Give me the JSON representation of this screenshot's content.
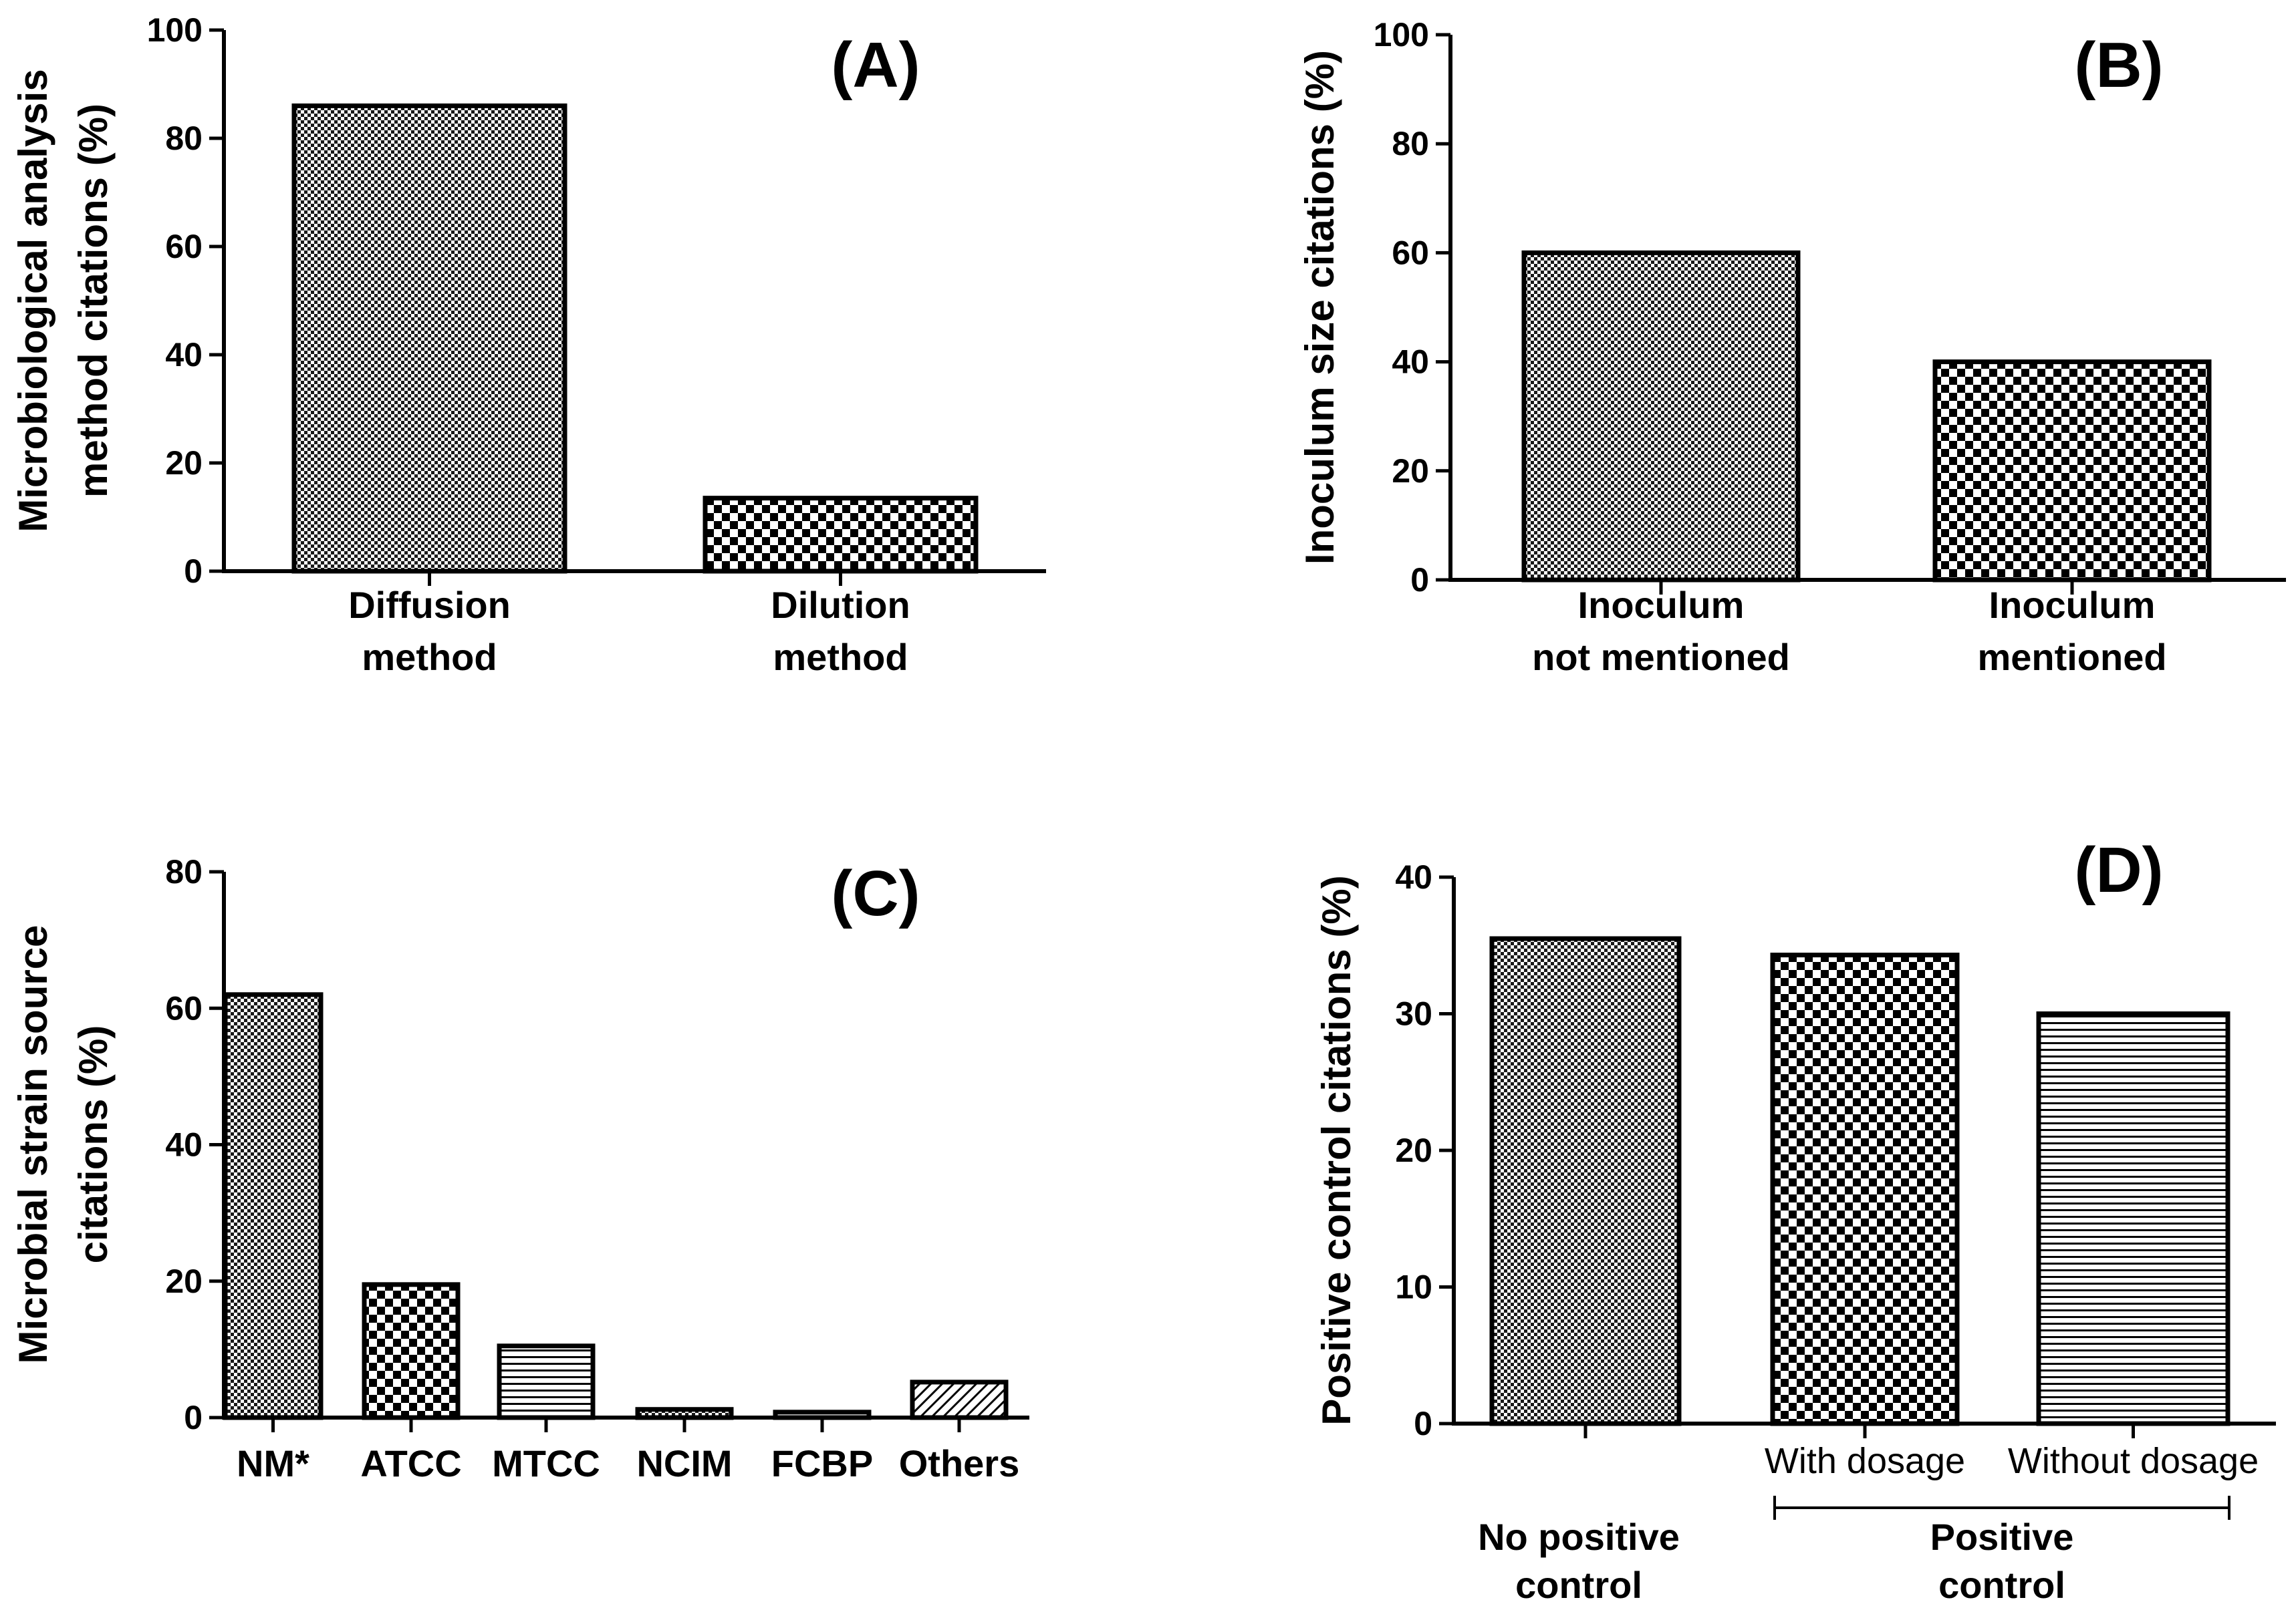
{
  "chart_data": [
    {
      "panel": "(A)",
      "type": "bar",
      "ylabel_lines": [
        "Microbiological analysis",
        "method citations (%)"
      ],
      "ylim": [
        0,
        100
      ],
      "yticks": [
        "0",
        "20",
        "40",
        "60",
        "80",
        "100"
      ],
      "categories": [
        {
          "lines": [
            "Diffusion",
            "method"
          ],
          "value": 86,
          "pattern": "fine"
        },
        {
          "lines": [
            "Dilution",
            "method"
          ],
          "value": 13.5,
          "pattern": "checker"
        }
      ],
      "grid": false
    },
    {
      "panel": "(B)",
      "type": "bar",
      "ylabel_lines": [
        "Inoculum  size citations (%)"
      ],
      "ylim": [
        0,
        100
      ],
      "yticks": [
        "0",
        "20",
        "40",
        "60",
        "80",
        "100"
      ],
      "categories": [
        {
          "lines": [
            "Inoculum",
            "not mentioned"
          ],
          "value": 60,
          "pattern": "fine"
        },
        {
          "lines": [
            "Inoculum",
            "mentioned"
          ],
          "value": 40,
          "pattern": "checker"
        }
      ],
      "grid": false
    },
    {
      "panel": "(C)",
      "type": "bar",
      "ylabel_lines": [
        "Microbial strain source",
        "citations (%)"
      ],
      "ylim": [
        0,
        80
      ],
      "yticks": [
        "0",
        "20",
        "40",
        "60",
        "80"
      ],
      "categories": [
        {
          "lines": [
            "NM*"
          ],
          "value": 62,
          "pattern": "fine"
        },
        {
          "lines": [
            "ATCC"
          ],
          "value": 19.5,
          "pattern": "checker"
        },
        {
          "lines": [
            "MTCC"
          ],
          "value": 10.5,
          "pattern": "hlines"
        },
        {
          "lines": [
            "NCIM"
          ],
          "value": 1.2,
          "pattern": "fine"
        },
        {
          "lines": [
            "FCBP"
          ],
          "value": 0.8,
          "pattern": "hlines"
        },
        {
          "lines": [
            "Others"
          ],
          "value": 5.2,
          "pattern": "diag"
        }
      ],
      "grid": false
    },
    {
      "panel": "(D)",
      "type": "bar",
      "ylabel_lines": [
        "Positive control citations (%)"
      ],
      "ylim": [
        0,
        40
      ],
      "yticks": [
        "0",
        "10",
        "20",
        "30",
        "40"
      ],
      "categories": [
        {
          "lines": [],
          "value": 35.5,
          "pattern": "fine"
        },
        {
          "lines": [
            "With dosage"
          ],
          "value": 34.3,
          "pattern": "checker"
        },
        {
          "lines": [
            "Without dosage"
          ],
          "value": 30,
          "pattern": "hlines"
        }
      ],
      "group_labels": [
        {
          "lines": [
            "No positive",
            "control"
          ]
        },
        {
          "lines": [
            "Positive",
            "control"
          ]
        }
      ],
      "grid": false
    }
  ]
}
